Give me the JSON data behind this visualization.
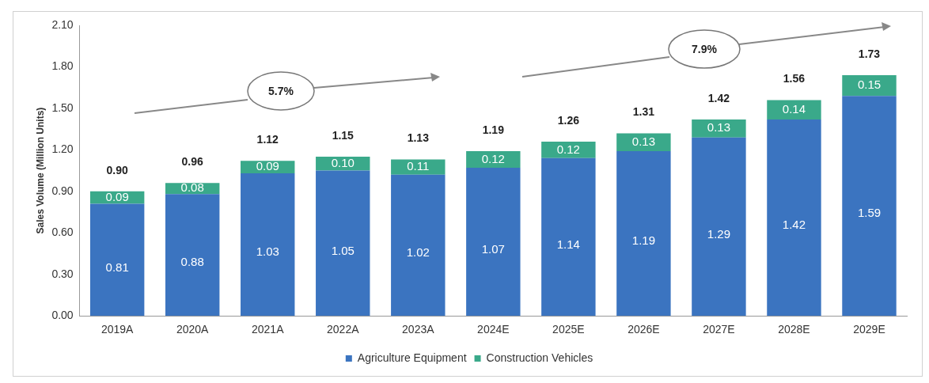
{
  "chart_data": {
    "type": "bar",
    "ylabel": "Sales Volume (Million Units)",
    "categories": [
      "2019A",
      "2020A",
      "2021A",
      "2022A",
      "2023A",
      "2024E",
      "2025E",
      "2026E",
      "2027E",
      "2028E",
      "2029E"
    ],
    "series": [
      {
        "name": "Agriculture Equipment",
        "color": "#3b74c0",
        "values": [
          0.81,
          0.88,
          1.03,
          1.05,
          1.02,
          1.07,
          1.14,
          1.19,
          1.29,
          1.42,
          1.59
        ],
        "value_labels": [
          "0.81",
          "0.88",
          "1.03",
          "1.05",
          "1.02",
          "1.07",
          "1.14",
          "1.19",
          "1.29",
          "1.42",
          "1.59"
        ]
      },
      {
        "name": "Construction Vehicles",
        "color": "#3aa98a",
        "values": [
          0.09,
          0.08,
          0.09,
          0.1,
          0.11,
          0.12,
          0.12,
          0.13,
          0.13,
          0.14,
          0.15
        ],
        "value_labels": [
          "0.09",
          "0.08",
          "0.09",
          "0.10",
          "0.11",
          "0.12",
          "0.12",
          "0.13",
          "0.13",
          "0.14",
          "0.15"
        ]
      }
    ],
    "stacked": true,
    "totals": [
      "0.90",
      "0.96",
      "1.12",
      "1.15",
      "1.13",
      "1.19",
      "1.26",
      "1.31",
      "1.42",
      "1.56",
      "1.73"
    ],
    "ylim": [
      0,
      2.1
    ],
    "yticks": [
      {
        "value": 0,
        "label": "0.00"
      },
      {
        "value": 0.3,
        "label": "0.30"
      },
      {
        "value": 0.6,
        "label": "0.60"
      },
      {
        "value": 0.9,
        "label": "0.90"
      },
      {
        "value": 1.2,
        "label": "1.20"
      },
      {
        "value": 1.5,
        "label": "1.50"
      },
      {
        "value": 1.8,
        "label": "1.80"
      },
      {
        "value": 2.1,
        "label": "2.10"
      }
    ],
    "annotations": [
      "5.7%",
      "7.9%"
    ],
    "grid": false,
    "legend": "bottom"
  }
}
